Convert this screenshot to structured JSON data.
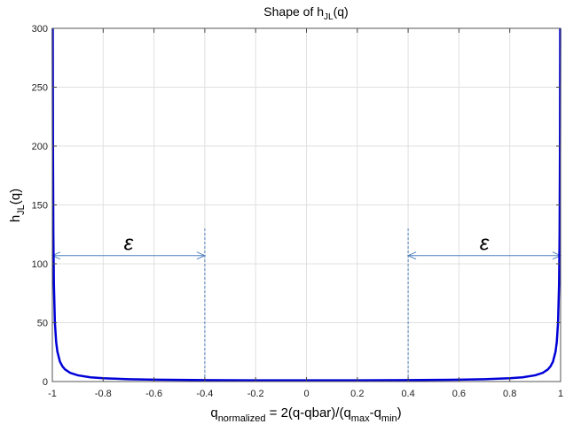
{
  "chart_data": {
    "type": "line",
    "title": {
      "main": "Shape of h",
      "sub": "JL",
      "suffix": "(q)"
    },
    "xlabel": {
      "main": "q",
      "sub1": "normalized",
      "mid": " = 2(q-qbar)/(q",
      "sub2": "max",
      "mid2": "-q",
      "sub3": "min",
      "end": ")"
    },
    "ylabel": {
      "main": "h",
      "sub": "JL",
      "suffix": "(q)"
    },
    "xlim": [
      -1,
      1
    ],
    "ylim": [
      0,
      300
    ],
    "xticks": [
      -1,
      -0.8,
      -0.6,
      -0.4,
      -0.2,
      0,
      0.2,
      0.4,
      0.6,
      0.8,
      1
    ],
    "xtick_labels": [
      "-1",
      "-0.8",
      "-0.6",
      "-0.4",
      "-0.2",
      "0",
      "0.2",
      "0.4",
      "0.6",
      "0.8",
      "1"
    ],
    "yticks": [
      0,
      50,
      100,
      150,
      200,
      250,
      300
    ],
    "ytick_labels": [
      "0",
      "50",
      "100",
      "150",
      "200",
      "250",
      "300"
    ],
    "grid": true,
    "series": [
      {
        "color": "#0000d8",
        "x": [
          -0.99833,
          -0.9975,
          -0.996,
          -0.994,
          -0.99,
          -0.985,
          -0.98,
          -0.97,
          -0.96,
          -0.95,
          -0.93,
          -0.9,
          -0.85,
          -0.8,
          -0.7,
          -0.6,
          -0.4,
          -0.2,
          0,
          0.2,
          0.4,
          0.6,
          0.7,
          0.8,
          0.85,
          0.9,
          0.93,
          0.95,
          0.96,
          0.97,
          0.98,
          0.985,
          0.99,
          0.994,
          0.996,
          0.9975,
          0.99833
        ],
        "y": [
          300,
          200.3,
          125.3,
          83.6,
          50.3,
          33.6,
          25.3,
          16.9,
          12.8,
          10.3,
          7.4,
          5.3,
          3.6,
          2.8,
          2.0,
          1.6,
          1.2,
          1.0,
          1.0,
          1.0,
          1.2,
          1.6,
          2.0,
          2.8,
          3.6,
          5.3,
          7.4,
          10.3,
          12.8,
          16.9,
          25.3,
          33.6,
          50.3,
          83.6,
          125.3,
          200.3,
          300
        ]
      }
    ],
    "annotations": {
      "color": "#4f81bd",
      "vlines": [
        {
          "x": -0.4,
          "y_top": 130
        },
        {
          "x": 0.4,
          "y_top": 130
        }
      ],
      "arrows": [
        {
          "x1": -1,
          "x2": -0.4,
          "y": 107,
          "label": "ε"
        },
        {
          "x1": 0.4,
          "x2": 1,
          "y": 107,
          "label": "ε"
        }
      ]
    }
  }
}
